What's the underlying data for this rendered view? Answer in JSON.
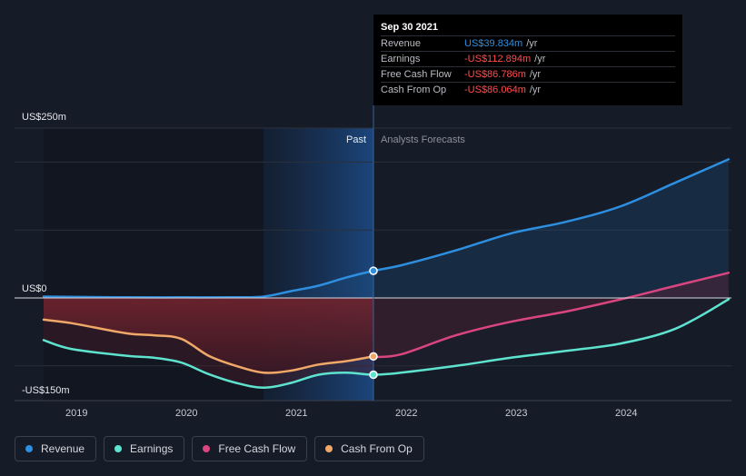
{
  "tooltip": {
    "date": "Sep 30 2021",
    "rows": [
      {
        "label": "Revenue",
        "value": "US$39.834m",
        "unit": "/yr",
        "color": "#2e8fe0"
      },
      {
        "label": "Earnings",
        "value": "-US$112.894m",
        "unit": "/yr",
        "color": "#ff4d4d"
      },
      {
        "label": "Free Cash Flow",
        "value": "-US$86.786m",
        "unit": "/yr",
        "color": "#ff4d4d"
      },
      {
        "label": "Cash From Op",
        "value": "-US$86.064m",
        "unit": "/yr",
        "color": "#ff4d4d"
      }
    ]
  },
  "legend": [
    {
      "label": "Revenue",
      "color": "#2e8fe0"
    },
    {
      "label": "Earnings",
      "color": "#5ee3cf"
    },
    {
      "label": "Free Cash Flow",
      "color": "#d9457f"
    },
    {
      "label": "Cash From Op",
      "color": "#f0a868"
    }
  ],
  "chart_data": {
    "type": "line",
    "y_unit": "US$ millions",
    "ylim": [
      -150,
      250
    ],
    "y_tick_labels": [
      {
        "value": 250,
        "label": "US$250m"
      },
      {
        "value": 0,
        "label": "US$0"
      },
      {
        "value": -150,
        "label": "-US$150m"
      }
    ],
    "xlim": [
      2018.73,
      2024.98
    ],
    "x_ticks": [
      2019,
      2020,
      2021,
      2022,
      2023,
      2024
    ],
    "x_tick_labels": [
      "2019",
      "2020",
      "2021",
      "2022",
      "2023",
      "2024"
    ],
    "divider": 2021.75,
    "divider_labels": {
      "past": "Past",
      "forecast": "Analysts Forecasts"
    },
    "highlight_start": 2020.75,
    "series": [
      {
        "name": "Revenue",
        "color": "#2e8fe0",
        "x": [
          2018.75,
          2019.5,
          2020.0,
          2020.5,
          2020.75,
          2021.0,
          2021.25,
          2021.5,
          2021.75,
          2022.0,
          2022.5,
          2023.0,
          2023.5,
          2024.0,
          2024.5,
          2024.98
        ],
        "y": [
          2,
          1,
          1,
          1,
          2,
          10,
          18,
          30,
          40,
          48,
          70,
          95,
          112,
          135,
          170,
          204
        ]
      },
      {
        "name": "Earnings",
        "color": "#5ee3cf",
        "x": [
          2018.75,
          2019.0,
          2019.5,
          2019.75,
          2020.0,
          2020.25,
          2020.5,
          2020.75,
          2021.0,
          2021.25,
          2021.5,
          2021.75,
          2022.0,
          2022.5,
          2023.0,
          2023.5,
          2024.0,
          2024.5,
          2024.98
        ],
        "y": [
          -62,
          -75,
          -85,
          -88,
          -95,
          -112,
          -125,
          -132,
          -125,
          -113,
          -110,
          -113,
          -110,
          -100,
          -88,
          -78,
          -67,
          -45,
          -2
        ]
      },
      {
        "name": "Free Cash Flow",
        "color": "#d9457f",
        "x": [
          2021.75,
          2022.0,
          2022.5,
          2023.0,
          2023.5,
          2024.0,
          2024.5,
          2024.98
        ],
        "y": [
          -87,
          -83,
          -55,
          -35,
          -20,
          -2,
          18,
          37
        ]
      },
      {
        "name": "Cash From Op",
        "color": "#f0a868",
        "x": [
          2018.75,
          2019.0,
          2019.5,
          2019.75,
          2020.0,
          2020.25,
          2020.5,
          2020.75,
          2021.0,
          2021.25,
          2021.5,
          2021.75
        ],
        "y": [
          -32,
          -37,
          -52,
          -55,
          -60,
          -85,
          -100,
          -110,
          -107,
          -98,
          -93,
          -86
        ]
      }
    ]
  }
}
